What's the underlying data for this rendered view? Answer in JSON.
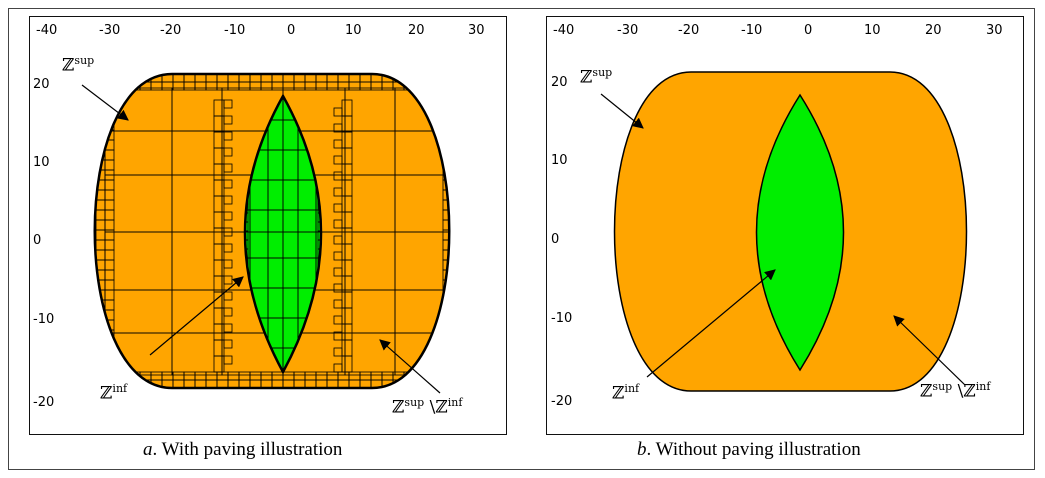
{
  "panels": [
    {
      "id": "a",
      "caption_letter": "a",
      "caption_text": ". With paving illustration",
      "x_ticks": [
        "-40",
        "-30",
        "-20",
        "-10",
        "0",
        "10",
        "20",
        "30"
      ],
      "y_ticks": [
        "20",
        "10",
        "0",
        "-10",
        "-20"
      ],
      "labels": {
        "outer": {
          "base": "ℤ",
          "sup": "sup"
        },
        "inner": {
          "base": "ℤ",
          "sup": "inf"
        },
        "diff": {
          "base": "ℤ",
          "sup": "sup",
          "sep": " \\ℤ",
          "sup2": "inf"
        }
      }
    },
    {
      "id": "b",
      "caption_letter": "b",
      "caption_text": ". Without paving illustration",
      "x_ticks": [
        "-40",
        "-30",
        "-20",
        "-10",
        "0",
        "10",
        "20",
        "30"
      ],
      "y_ticks": [
        "20",
        "10",
        "0",
        "-10",
        "-20"
      ],
      "labels": {
        "outer": {
          "base": "ℤ",
          "sup": "sup"
        },
        "inner": {
          "base": "ℤ",
          "sup": "inf"
        },
        "diff": {
          "base": "ℤ",
          "sup": "sup",
          "sep": " \\ℤ",
          "sup2": "inf"
        }
      }
    }
  ],
  "colors": {
    "outer_fill": "#FFA500",
    "inner_fill": "#00EE00",
    "edge": "#000000"
  }
}
